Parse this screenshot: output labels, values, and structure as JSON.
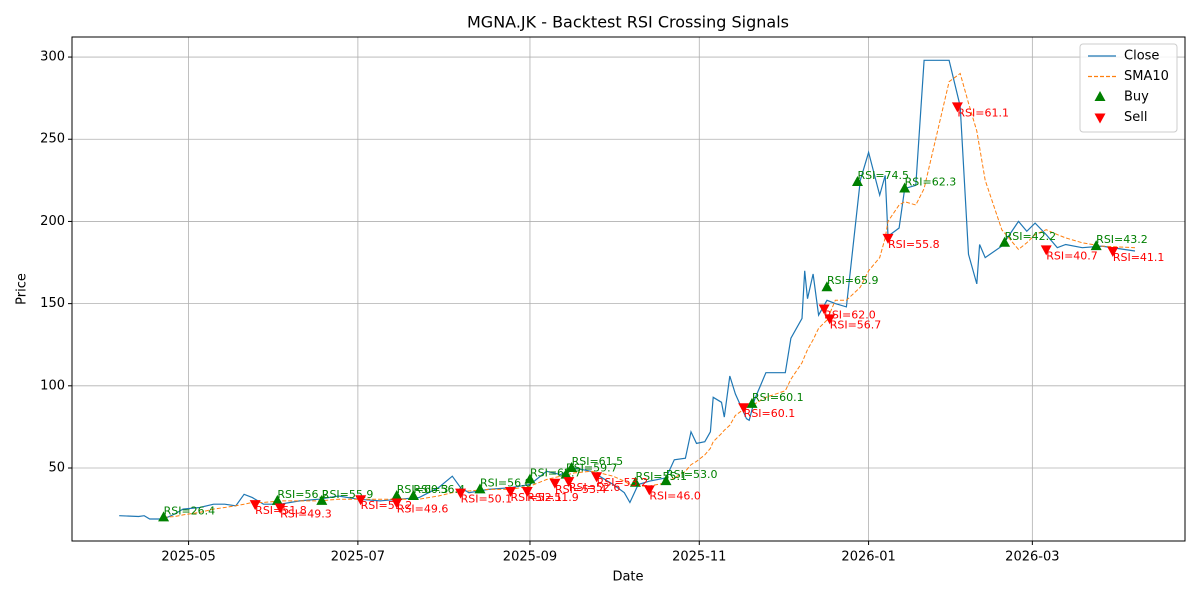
{
  "chart_data": {
    "type": "line",
    "title": "MGNA.JK - Backtest RSI Crossing Signals",
    "xlabel": "Date",
    "ylabel": "Price",
    "x": [
      "2025-04-06",
      "2025-04-13",
      "2025-04-15",
      "2025-04-17",
      "2025-04-22",
      "2025-04-26",
      "2025-04-29",
      "2025-05-05",
      "2025-05-10",
      "2025-05-14",
      "2025-05-18",
      "2025-05-21",
      "2025-05-24",
      "2025-05-28",
      "2025-06-03",
      "2025-06-10",
      "2025-06-17",
      "2025-06-24",
      "2025-07-01",
      "2025-07-09",
      "2025-07-16",
      "2025-07-23",
      "2025-07-30",
      "2025-08-04",
      "2025-08-07",
      "2025-08-10",
      "2025-08-17",
      "2025-08-25",
      "2025-09-01",
      "2025-09-07",
      "2025-09-12",
      "2025-09-17",
      "2025-09-23",
      "2025-09-26",
      "2025-10-01",
      "2025-10-05",
      "2025-10-07",
      "2025-10-10",
      "2025-10-14",
      "2025-10-20",
      "2025-10-23",
      "2025-10-27",
      "2025-10-29",
      "2025-10-31",
      "2025-11-03",
      "2025-11-05",
      "2025-11-06",
      "2025-11-09",
      "2025-11-10",
      "2025-11-12",
      "2025-11-14",
      "2025-11-18",
      "2025-11-19",
      "2025-11-21",
      "2025-11-25",
      "2025-12-02",
      "2025-12-04",
      "2025-12-08",
      "2025-12-09",
      "2025-12-10",
      "2025-12-12",
      "2025-12-14",
      "2025-12-17",
      "2025-12-20",
      "2025-12-24",
      "2025-12-29",
      "2026-01-01",
      "2026-01-05",
      "2026-01-07",
      "2026-01-08",
      "2026-01-12",
      "2026-01-14",
      "2026-01-18",
      "2026-01-21",
      "2026-01-30",
      "2026-02-03",
      "2026-02-06",
      "2026-02-09",
      "2026-02-10",
      "2026-02-12",
      "2026-02-18",
      "2026-02-24",
      "2026-02-27",
      "2026-03-02",
      "2026-03-06",
      "2026-03-10",
      "2026-03-13",
      "2026-03-19",
      "2026-03-26",
      "2026-04-07"
    ],
    "series": [
      {
        "name": "Close",
        "color": "#1f77b4",
        "style": "solid",
        "values": [
          21,
          20.5,
          21,
          19,
          19,
          22,
          25,
          26,
          28,
          28,
          27,
          34,
          32,
          28,
          28,
          30,
          31,
          33,
          31,
          30,
          31,
          32,
          38,
          45,
          38,
          35,
          37,
          38,
          40,
          48,
          46,
          50,
          48,
          45,
          40,
          35,
          29,
          40,
          42,
          44,
          55,
          56,
          72,
          65,
          66,
          72,
          93,
          90,
          81,
          106,
          95,
          80,
          79,
          92,
          108,
          108,
          129,
          141,
          170,
          153,
          168,
          143,
          152,
          150,
          148,
          225,
          242,
          216,
          228,
          191,
          196,
          220,
          222,
          298,
          298,
          270,
          180,
          162,
          186,
          178,
          185,
          200,
          194,
          199,
          192,
          184,
          186,
          184,
          185,
          182
        ]
      },
      {
        "name": "SMA10",
        "color": "#ff7f0e",
        "style": "dashed",
        "values": [
          null,
          null,
          null,
          null,
          20,
          20.5,
          21.5,
          23,
          25,
          26,
          27,
          28,
          29,
          29,
          30,
          30,
          30,
          31,
          31,
          31,
          31,
          31,
          33,
          35,
          36,
          36,
          37,
          37,
          39,
          43,
          45,
          47,
          48,
          47,
          45,
          42,
          40,
          39,
          39,
          41,
          44,
          48,
          52,
          54,
          58,
          62,
          66,
          71,
          73,
          76,
          82,
          87,
          88,
          89,
          93,
          97,
          104,
          114,
          118,
          122,
          128,
          135,
          140,
          152,
          152,
          160,
          170,
          178,
          190,
          200,
          210,
          212,
          210,
          220,
          285,
          290,
          272,
          255,
          245,
          225,
          195,
          183,
          187,
          192,
          195,
          192,
          190,
          187,
          185,
          184
        ]
      },
      {
        "name": "Buy",
        "color": "#008000",
        "marker": "up",
        "x": [
          "2025-04-22",
          "2025-06-02",
          "2025-06-18",
          "2025-07-15",
          "2025-07-21",
          "2025-08-14",
          "2025-09-01",
          "2025-09-14",
          "2025-09-16",
          "2025-10-09",
          "2025-10-20",
          "2025-11-20",
          "2025-12-17",
          "2025-12-28",
          "2026-01-14",
          "2026-02-19",
          "2026-03-24"
        ],
        "values": [
          20,
          30,
          30,
          33,
          33,
          37,
          43,
          46,
          50,
          41,
          42,
          89,
          160,
          224,
          220,
          187,
          185
        ],
        "labels": [
          "RSI=26.4",
          "RSI=56.2",
          "RSI=55.9",
          "RSI=60.3",
          "RSI=56.4",
          "RSI=56.8",
          "RSI=62.7",
          "RSI=59.7",
          "RSI=61.5",
          "RSI=55.1",
          "RSI=53.0",
          "RSI=60.1",
          "RSI=65.9",
          "RSI=74.5",
          "RSI=62.3",
          "RSI=42.2",
          "RSI=43.2"
        ]
      },
      {
        "name": "Sell",
        "color": "#ff0000",
        "marker": "down",
        "x": [
          "2025-05-25",
          "2025-06-03",
          "2025-07-02",
          "2025-07-15",
          "2025-08-07",
          "2025-08-25",
          "2025-08-31",
          "2025-09-10",
          "2025-09-15",
          "2025-09-25",
          "2025-10-14",
          "2025-11-17",
          "2025-12-16",
          "2025-12-18",
          "2026-01-08",
          "2026-02-02",
          "2026-03-06",
          "2026-03-30"
        ],
        "values": [
          28,
          26,
          31,
          29,
          35,
          36,
          36,
          41,
          42,
          45,
          37,
          87,
          147,
          141,
          190,
          270,
          183,
          182
        ],
        "labels": [
          "RSI=51.8",
          "RSI=49.3",
          "RSI=51.2",
          "RSI=49.6",
          "RSI=50.1",
          "RSI=52.1",
          "RSI=51.9",
          "RSI=53.4",
          "RSI=52.6",
          "RSI=53.2",
          "RSI=46.0",
          "RSI=60.1",
          "RSI=62.0",
          "RSI=56.7",
          "RSI=55.8",
          "RSI=61.1",
          "RSI=40.7",
          "RSI=41.1"
        ]
      }
    ],
    "xlim": [
      "2025-03-20",
      "2026-04-25"
    ],
    "xticks": [
      {
        "value": "2025-05-01",
        "label": "2025-05"
      },
      {
        "value": "2025-07-01",
        "label": "2025-07"
      },
      {
        "value": "2025-09-01",
        "label": "2025-09"
      },
      {
        "value": "2025-11-01",
        "label": "2025-11"
      },
      {
        "value": "2026-01-01",
        "label": "2026-01"
      },
      {
        "value": "2026-03-01",
        "label": "2026-03"
      }
    ],
    "ylim": [
      5.6,
      312.2
    ],
    "yticks": [
      50,
      100,
      150,
      200,
      250,
      300
    ],
    "grid": true,
    "legend": "upper-right"
  }
}
